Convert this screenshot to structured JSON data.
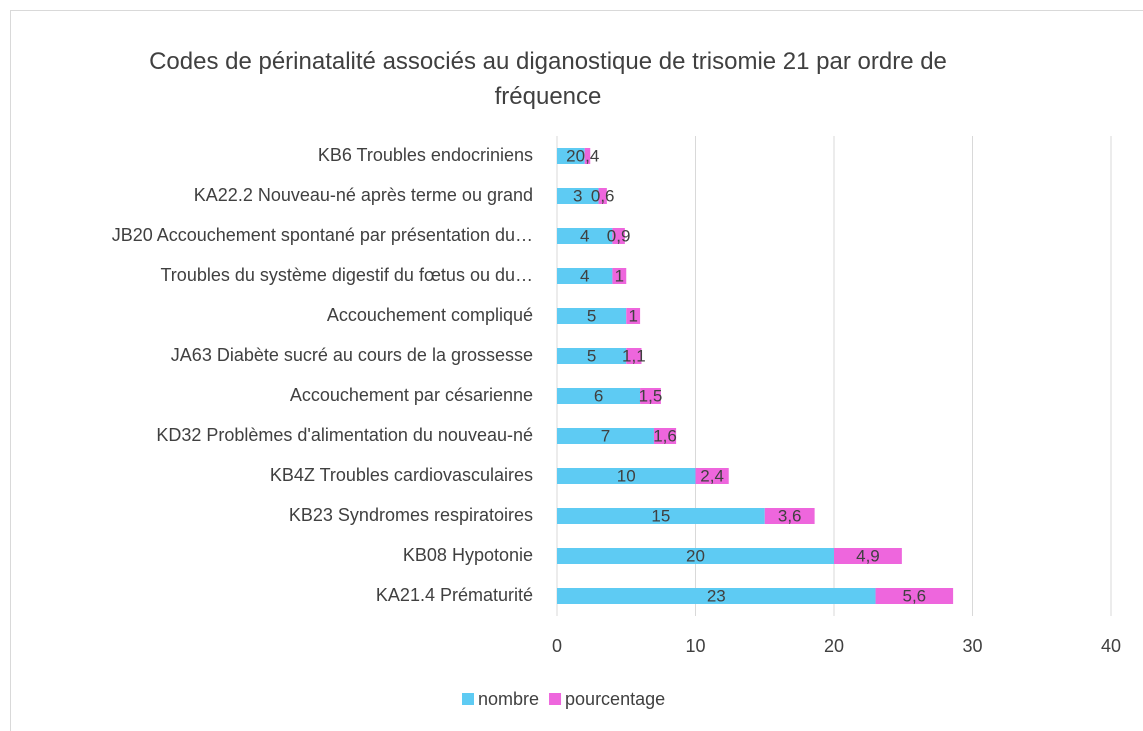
{
  "chart_data": {
    "type": "stacked_barh",
    "title": "Codes de périnatalité associés au diganostique de trisomie 21 par ordre de fréquence",
    "categories": [
      "KB6 Troubles endocriniens",
      "KA22.2 Nouveau-né après terme ou grand",
      "JB20 Accouchement spontané par présentation du…",
      "Troubles du système digestif du fœtus ou du…",
      "Accouchement compliqué",
      "JA63 Diabète sucré au cours de la grossesse",
      "Accouchement par césarienne",
      "KD32 Problèmes d'alimentation du nouveau-né",
      "KB4Z Troubles cardiovasculaires",
      "KB23 Syndromes respiratoires",
      "KB08 Hypotonie",
      "KA21.4 Prématurité"
    ],
    "series": [
      {
        "name": "nombre",
        "color": "#5ecbf3",
        "values": [
          2,
          3,
          4,
          4,
          5,
          5,
          6,
          7,
          10,
          15,
          20,
          23
        ]
      },
      {
        "name": "pourcentage",
        "color": "#ee66dd",
        "values": [
          0.4,
          0.6,
          0.9,
          1,
          1,
          1.1,
          1.5,
          1.6,
          2.4,
          3.6,
          4.9,
          5.6
        ],
        "value_labels": [
          "0,4",
          "0,6",
          "0,9",
          "1",
          "1",
          "1,1",
          "1,5",
          "1,6",
          "2,4",
          "3,6",
          "4,9",
          "5,6"
        ]
      }
    ],
    "xlim": [
      0,
      40
    ],
    "xticks": [
      0,
      10,
      20,
      30,
      40
    ],
    "grid": true,
    "legend": "bottom"
  }
}
